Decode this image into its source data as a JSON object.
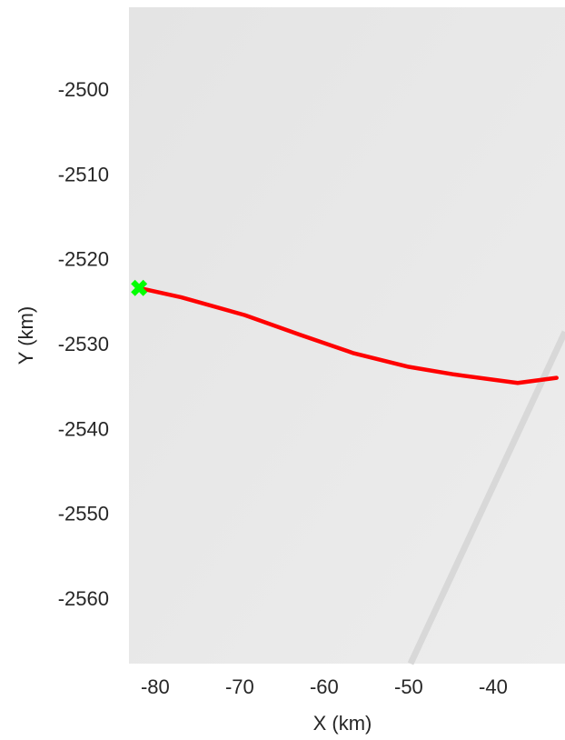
{
  "chart_data": {
    "type": "line",
    "xlabel": "X (km)",
    "ylabel": "Y (km)",
    "xlim": [
      -83.1,
      -31.5
    ],
    "xticks": [
      -80,
      -70,
      -60,
      -50,
      -40
    ],
    "ylim": [
      -2567.5,
      -2490.1
    ],
    "yticks": [
      -2500,
      -2510,
      -2520,
      -2530,
      -2540,
      -2550,
      -2560
    ],
    "grid": false,
    "series": [
      {
        "color": "#ff0000",
        "x": [
          -81.9,
          -76.9,
          -69.4,
          -62.9,
          -56.5,
          -50.0,
          -44.6,
          -37.1,
          -32.5
        ],
        "y": [
          -2523.2,
          -2524.3,
          -2526.4,
          -2528.7,
          -2530.9,
          -2532.5,
          -2533.4,
          -2534.4,
          -2533.8
        ]
      }
    ],
    "marker": {
      "color": "#00ff00",
      "x": -81.9,
      "y": -2523.2
    }
  }
}
